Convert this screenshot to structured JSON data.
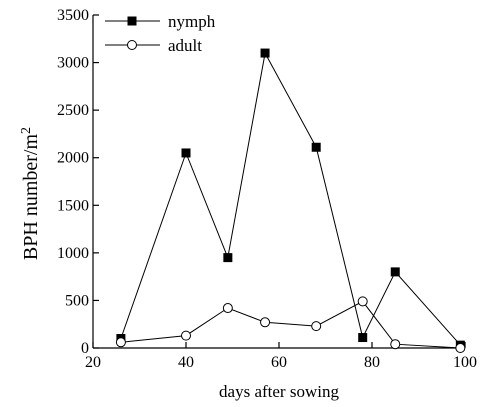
{
  "chart_data": {
    "type": "line",
    "title": "",
    "xlabel": "days after sowing",
    "ylabel": "BPH number/m2",
    "ylabel_parts": {
      "main": "BPH number/m",
      "superscript": "2"
    },
    "xlim": [
      20,
      100
    ],
    "ylim": [
      0,
      3500
    ],
    "xticks": [
      20,
      40,
      60,
      80,
      100
    ],
    "yticks": [
      0,
      500,
      1000,
      1500,
      2000,
      2500,
      3000,
      3500
    ],
    "grid": false,
    "legend_position": "top-left",
    "series": [
      {
        "name": "nymph",
        "marker": "filled-square",
        "color": "#000000",
        "x": [
          26,
          40,
          49,
          57,
          68,
          78,
          85,
          99
        ],
        "y": [
          100,
          2050,
          950,
          3100,
          2110,
          110,
          800,
          30
        ]
      },
      {
        "name": "adult",
        "marker": "open-circle",
        "color": "#000000",
        "x": [
          26,
          40,
          49,
          57,
          68,
          78,
          85,
          99
        ],
        "y": [
          60,
          130,
          420,
          270,
          230,
          490,
          40,
          0
        ]
      }
    ]
  }
}
